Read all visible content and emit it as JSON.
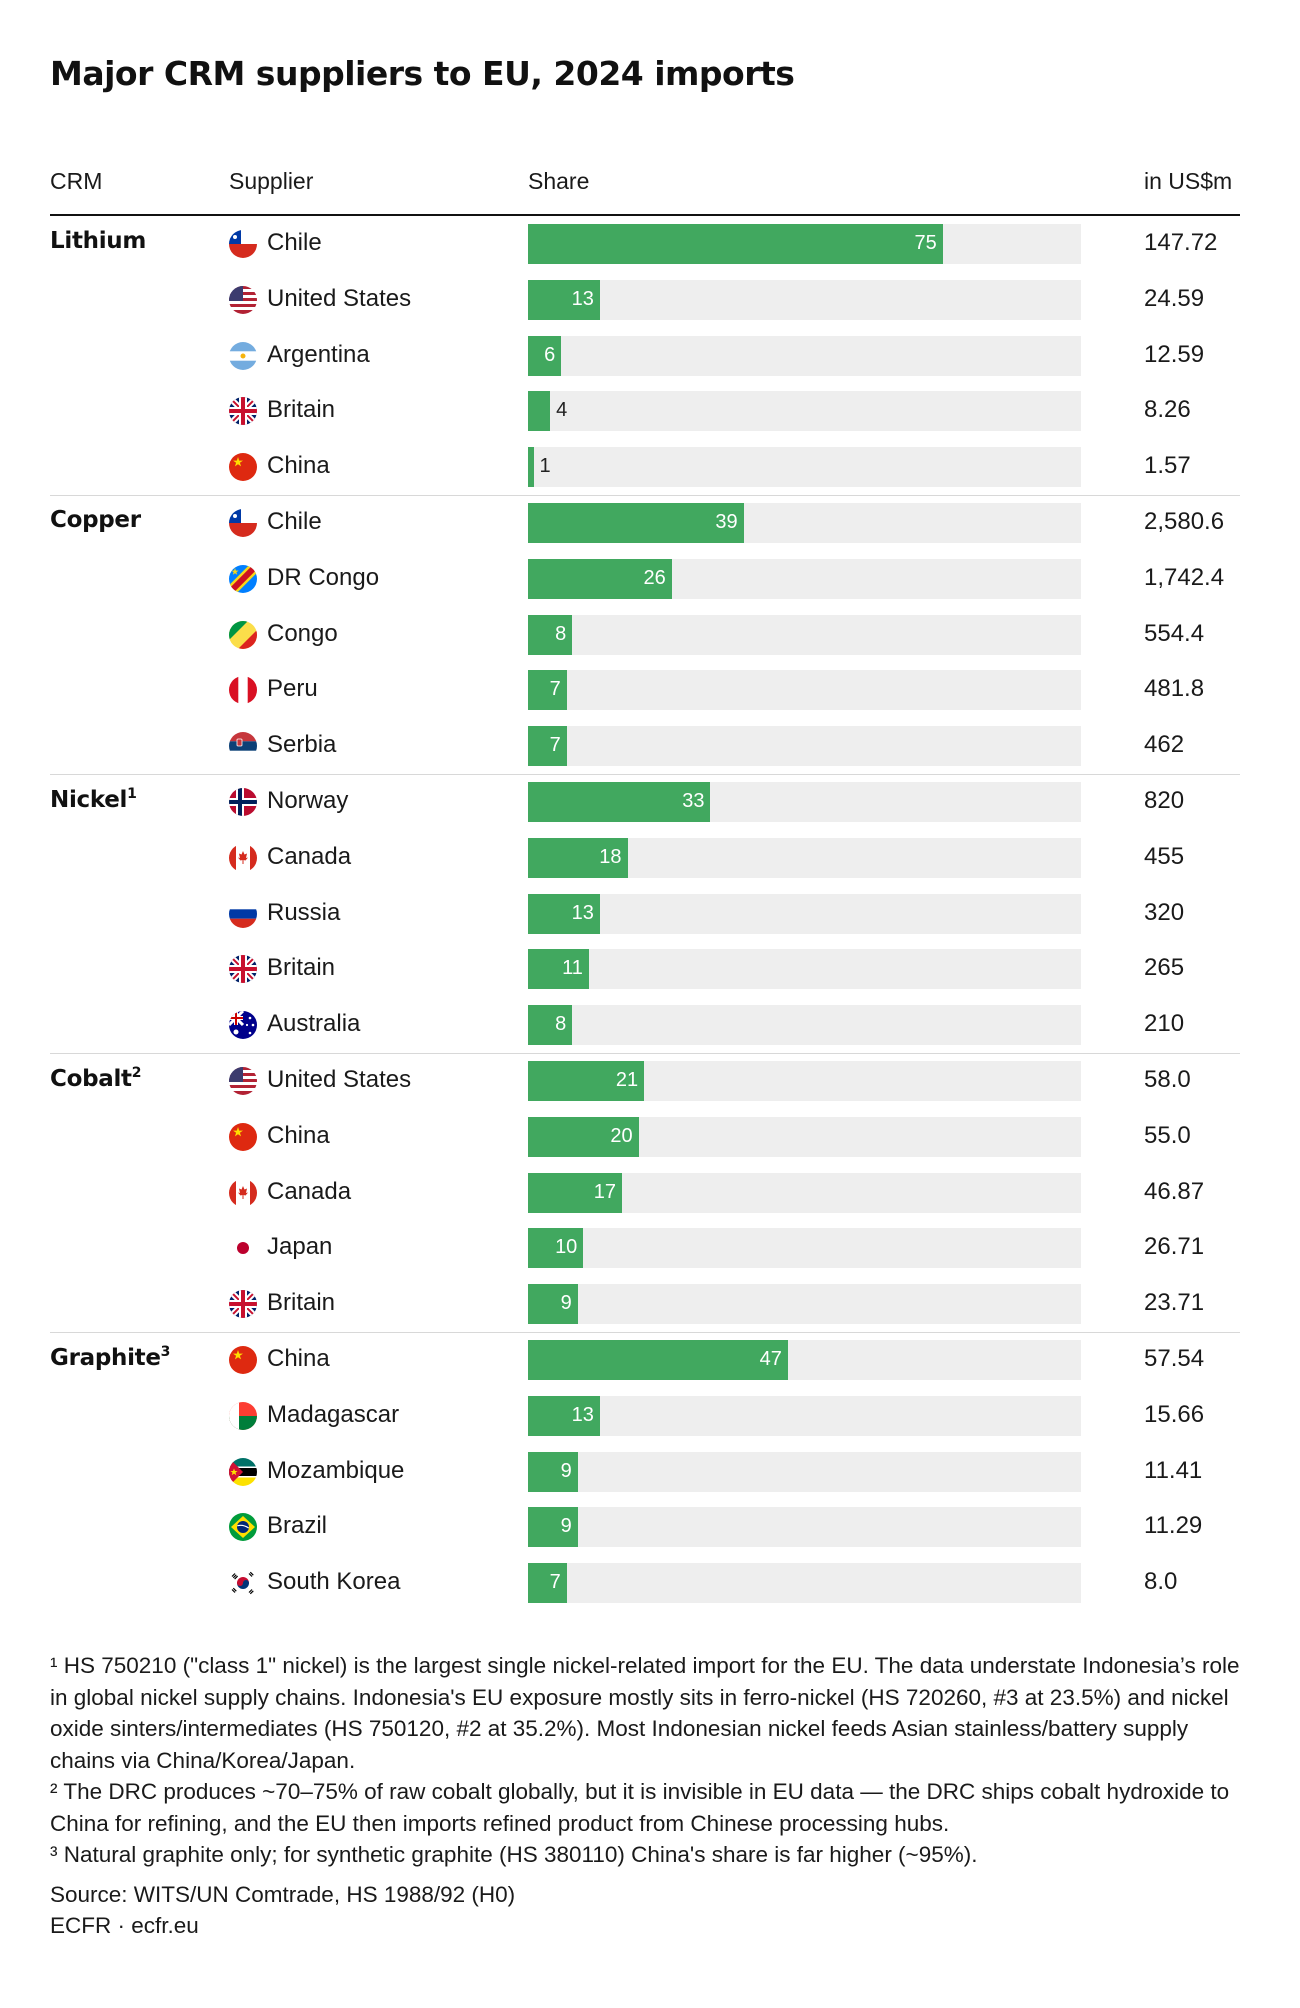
{
  "title": "Major CRM suppliers to EU, 2024 imports",
  "colors": {
    "bar": "#41a85f",
    "track": "#eeeeee"
  },
  "headers": {
    "crm": "CRM",
    "supplier": "Supplier",
    "share": "Share",
    "value": "in US$m"
  },
  "chart_data": {
    "type": "bar",
    "orientation": "horizontal",
    "title": "Major CRM suppliers to EU, 2024 imports",
    "value_unit": "Share",
    "xlim": [
      0,
      100
    ],
    "groups": [
      {
        "name": "Lithium",
        "note": "",
        "rows": [
          {
            "country": "Chile",
            "flag": "chile-flag-icon",
            "share": 75,
            "value": "147.72"
          },
          {
            "country": "United States",
            "flag": "usa-flag-icon",
            "share": 13,
            "value": "24.59"
          },
          {
            "country": "Argentina",
            "flag": "argentina-flag-icon",
            "share": 6,
            "value": "12.59"
          },
          {
            "country": "Britain",
            "flag": "uk-flag-icon",
            "share": 4,
            "value": "8.26"
          },
          {
            "country": "China",
            "flag": "china-flag-icon",
            "share": 1,
            "value": "1.57"
          }
        ]
      },
      {
        "name": "Copper",
        "note": "",
        "rows": [
          {
            "country": "Chile",
            "flag": "chile-flag-icon",
            "share": 39,
            "value": "2,580.6"
          },
          {
            "country": "DR Congo",
            "flag": "dr-congo-flag-icon",
            "share": 26,
            "value": "1,742.4"
          },
          {
            "country": "Congo",
            "flag": "congo-flag-icon",
            "share": 8,
            "value": "554.4"
          },
          {
            "country": "Peru",
            "flag": "peru-flag-icon",
            "share": 7,
            "value": "481.8"
          },
          {
            "country": "Serbia",
            "flag": "serbia-flag-icon",
            "share": 7,
            "value": "462"
          }
        ]
      },
      {
        "name": "Nickel",
        "note": "1",
        "rows": [
          {
            "country": "Norway",
            "flag": "norway-flag-icon",
            "share": 33,
            "value": "820"
          },
          {
            "country": "Canada",
            "flag": "canada-flag-icon",
            "share": 18,
            "value": "455"
          },
          {
            "country": "Russia",
            "flag": "russia-flag-icon",
            "share": 13,
            "value": "320"
          },
          {
            "country": "Britain",
            "flag": "uk-flag-icon",
            "share": 11,
            "value": "265"
          },
          {
            "country": "Australia",
            "flag": "australia-flag-icon",
            "share": 8,
            "value": "210"
          }
        ]
      },
      {
        "name": "Cobalt",
        "note": "2",
        "rows": [
          {
            "country": "United States",
            "flag": "usa-flag-icon",
            "share": 21,
            "value": "58.0"
          },
          {
            "country": "China",
            "flag": "china-flag-icon",
            "share": 20,
            "value": "55.0"
          },
          {
            "country": "Canada",
            "flag": "canada-flag-icon",
            "share": 17,
            "value": "46.87"
          },
          {
            "country": "Japan",
            "flag": "japan-flag-icon",
            "share": 10,
            "value": "26.71"
          },
          {
            "country": "Britain",
            "flag": "uk-flag-icon",
            "share": 9,
            "value": "23.71"
          }
        ]
      },
      {
        "name": "Graphite",
        "note": "3",
        "rows": [
          {
            "country": "China",
            "flag": "china-flag-icon",
            "share": 47,
            "value": "57.54"
          },
          {
            "country": "Madagascar",
            "flag": "madagascar-flag-icon",
            "share": 13,
            "value": "15.66"
          },
          {
            "country": "Mozambique",
            "flag": "mozambique-flag-icon",
            "share": 9,
            "value": "11.41"
          },
          {
            "country": "Brazil",
            "flag": "brazil-flag-icon",
            "share": 9,
            "value": "11.29"
          },
          {
            "country": "South Korea",
            "flag": "south-korea-flag-icon",
            "share": 7,
            "value": "8.0"
          }
        ]
      }
    ]
  },
  "footnotes": {
    "note1": "¹ HS 750210 (\"class 1\" nickel) is the largest single nickel-related import for the EU. The data understate Indonesia’s role in global nickel supply chains. Indonesia's EU exposure mostly sits in ferro-nickel (HS 720260, #3 at 23.5%) and nickel oxide sinters/intermediates (HS 750120, #2 at 35.2%). Most Indonesian nickel feeds Asian stainless/battery supply chains via China/Korea/Japan.",
    "note2": "² The DRC produces ~70–75% of raw cobalt globally, but it is invisible in EU data — the DRC ships cobalt hydroxide to China for refining, and the EU then imports refined product from Chinese processing hubs.",
    "note3": "³ Natural graphite only; for synthetic graphite (HS 380110) China's share is far higher (~95%).",
    "source": "Source: WITS/UN Comtrade, HS 1988/92 (H0)",
    "credit": "ECFR · ecfr.eu"
  }
}
